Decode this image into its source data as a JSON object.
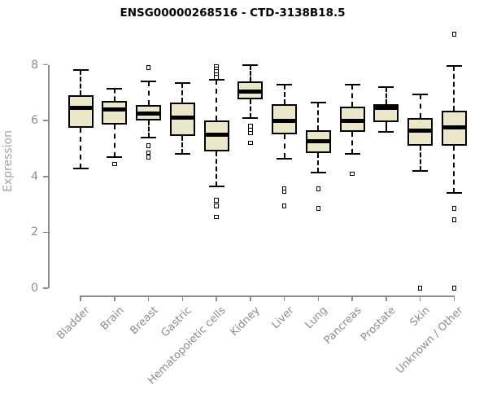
{
  "header": {
    "title": "ENSG00000268516 - CTD-3138B18.5"
  },
  "chart_data": {
    "type": "boxplot",
    "title": "ENSG00000268516 - CTD-3138B18.5",
    "xlabel": "",
    "ylabel": "Expression",
    "ylim": [
      0,
      9.3
    ],
    "yticks": [
      0,
      2,
      4,
      6,
      8
    ],
    "grid": false,
    "legend": false,
    "categories": [
      "Bladder",
      "Brain",
      "Breast",
      "Gastric",
      "Hematopoietic cells",
      "Kidney",
      "Liver",
      "Lung",
      "Pancreas",
      "Prostate",
      "Skin",
      "Unknown / Other"
    ],
    "series": [
      {
        "name": "Bladder",
        "whisker_low": 4.3,
        "q1": 5.75,
        "median": 6.45,
        "q3": 6.9,
        "whisker_high": 7.8,
        "outliers": []
      },
      {
        "name": "Brain",
        "whisker_low": 4.7,
        "q1": 5.85,
        "median": 6.4,
        "q3": 6.7,
        "whisker_high": 7.15,
        "outliers": [
          4.45
        ]
      },
      {
        "name": "Breast",
        "whisker_low": 5.4,
        "q1": 6.0,
        "median": 6.25,
        "q3": 6.55,
        "whisker_high": 7.4,
        "outliers": [
          7.9,
          5.1,
          4.85,
          4.7
        ]
      },
      {
        "name": "Gastric",
        "whisker_low": 4.8,
        "q1": 5.45,
        "median": 6.1,
        "q3": 6.65,
        "whisker_high": 7.35,
        "outliers": []
      },
      {
        "name": "Hematopoietic cells",
        "whisker_low": 3.65,
        "q1": 4.9,
        "median": 5.5,
        "q3": 6.0,
        "whisker_high": 7.45,
        "outliers": [
          7.95,
          7.85,
          7.75,
          7.65,
          7.55,
          3.15,
          2.95,
          2.55
        ]
      },
      {
        "name": "Kidney",
        "whisker_low": 6.1,
        "q1": 6.75,
        "median": 7.05,
        "q3": 7.4,
        "whisker_high": 8.0,
        "outliers": [
          5.8,
          5.65,
          5.55,
          5.2
        ]
      },
      {
        "name": "Liver",
        "whisker_low": 4.65,
        "q1": 5.5,
        "median": 6.0,
        "q3": 6.6,
        "whisker_high": 7.3,
        "outliers": [
          3.55,
          3.45,
          2.95
        ]
      },
      {
        "name": "Lung",
        "whisker_low": 4.15,
        "q1": 4.85,
        "median": 5.25,
        "q3": 5.65,
        "whisker_high": 6.65,
        "outliers": [
          3.55,
          2.85
        ]
      },
      {
        "name": "Pancreas",
        "whisker_low": 4.8,
        "q1": 5.6,
        "median": 6.0,
        "q3": 6.5,
        "whisker_high": 7.3,
        "outliers": [
          4.1
        ]
      },
      {
        "name": "Prostate",
        "whisker_low": 5.6,
        "q1": 5.95,
        "median": 6.45,
        "q3": 6.6,
        "whisker_high": 7.2,
        "outliers": []
      },
      {
        "name": "Skin",
        "whisker_low": 4.2,
        "q1": 5.1,
        "median": 5.65,
        "q3": 6.1,
        "whisker_high": 6.95,
        "outliers": [
          0
        ]
      },
      {
        "name": "Unknown / Other",
        "whisker_low": 3.4,
        "q1": 5.1,
        "median": 5.75,
        "q3": 6.35,
        "whisker_high": 7.95,
        "outliers": [
          9.1,
          2.85,
          2.45,
          0
        ]
      }
    ],
    "colors": {
      "box_fill": "#ECE7C8",
      "box_border": "#000000",
      "median": "#000000",
      "axis": "#8b8b8b",
      "tick_label": "#8b8b8b",
      "ylabel_color": "#a2a2a2",
      "title_color": "#000000",
      "background": "#ffffff"
    }
  }
}
